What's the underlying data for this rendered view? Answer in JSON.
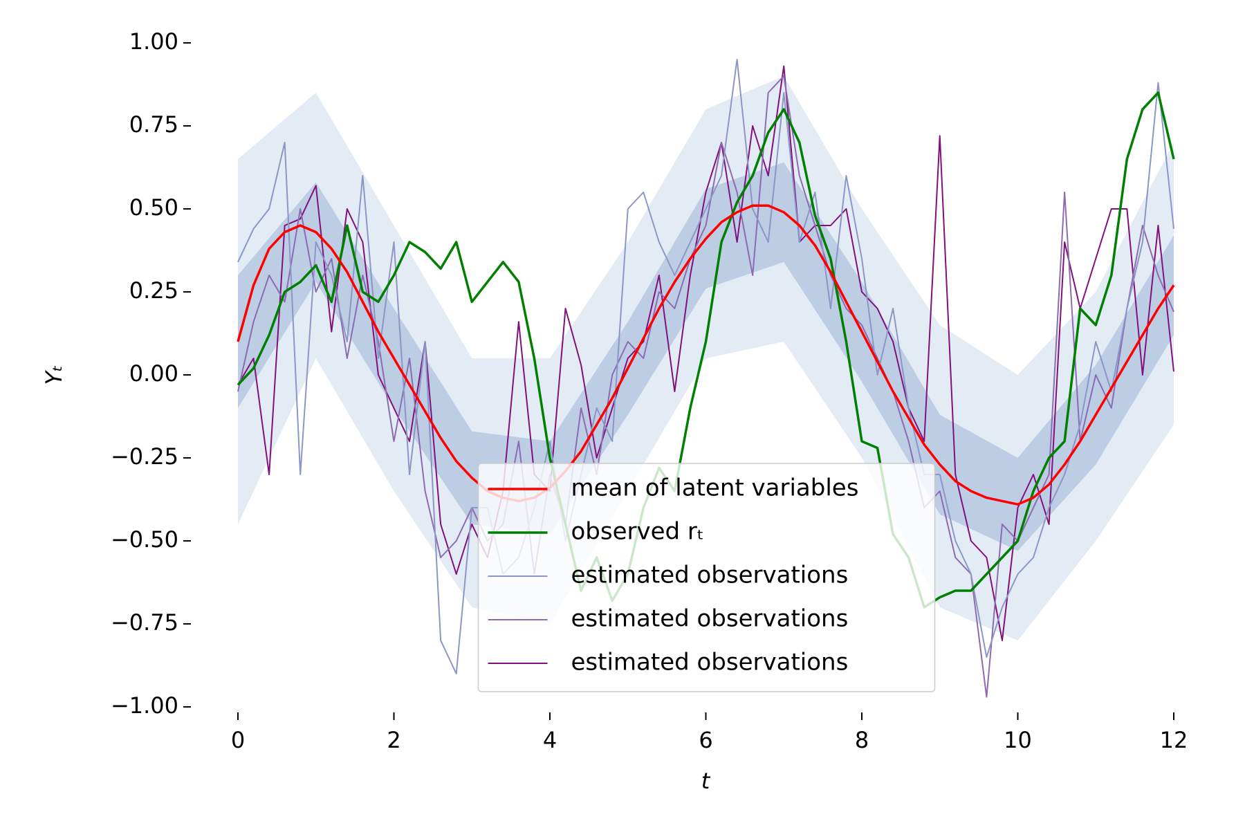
{
  "chart_data": {
    "type": "line",
    "xlabel": "t",
    "ylabel": "Yₜ",
    "xlim": [
      0,
      12
    ],
    "ylim": [
      -1,
      1
    ],
    "xticks": [
      0,
      2,
      4,
      6,
      8,
      10,
      12
    ],
    "yticks": [
      {
        "value": -1,
        "label": "−1.00"
      },
      {
        "value": -0.75,
        "label": "−0.75"
      },
      {
        "value": -0.5,
        "label": "−0.50"
      },
      {
        "value": -0.25,
        "label": "−0.25"
      },
      {
        "value": 0,
        "label": "0.00"
      },
      {
        "value": 0.25,
        "label": "0.25"
      },
      {
        "value": 0.5,
        "label": "0.50"
      },
      {
        "value": 0.75,
        "label": "0.75"
      },
      {
        "value": 1,
        "label": "1.00"
      }
    ],
    "legend": "lower center",
    "x": [
      0,
      0.2,
      0.4,
      0.6,
      0.8,
      1,
      1.2,
      1.4,
      1.6,
      1.8,
      2,
      2.2,
      2.4,
      2.6,
      2.8,
      3,
      3.2,
      3.4,
      3.6,
      3.8,
      4,
      4.2,
      4.4,
      4.6,
      4.8,
      5,
      5.2,
      5.4,
      5.6,
      5.8,
      6,
      6.2,
      6.4,
      6.6,
      6.8,
      7,
      7.2,
      7.4,
      7.6,
      7.8,
      8,
      8.2,
      8.4,
      8.6,
      8.8,
      9,
      9.2,
      9.4,
      9.6,
      9.8,
      10,
      10.2,
      10.4,
      10.6,
      10.8,
      11,
      11.2,
      11.4,
      11.6,
      11.8,
      12
    ],
    "series": [
      {
        "name": "mean of latent variables",
        "color": "#ff0000",
        "width": 3.5,
        "values": [
          0.1,
          0.27,
          0.38,
          0.43,
          0.45,
          0.43,
          0.38,
          0.31,
          0.22,
          0.13,
          0.05,
          -0.03,
          -0.11,
          -0.19,
          -0.26,
          -0.31,
          -0.35,
          -0.37,
          -0.38,
          -0.37,
          -0.34,
          -0.29,
          -0.23,
          -0.15,
          -0.07,
          0.02,
          0.11,
          0.2,
          0.28,
          0.35,
          0.41,
          0.46,
          0.49,
          0.51,
          0.51,
          0.49,
          0.45,
          0.39,
          0.31,
          0.22,
          0.13,
          0.04,
          -0.05,
          -0.13,
          -0.21,
          -0.27,
          -0.32,
          -0.35,
          -0.37,
          -0.38,
          -0.39,
          -0.37,
          -0.33,
          -0.27,
          -0.2,
          -0.12,
          -0.04,
          0.04,
          0.12,
          0.2,
          0.27
        ]
      },
      {
        "name": "observed rₜ",
        "color": "#008000",
        "width": 3.5,
        "values": [
          -0.03,
          0.02,
          0.12,
          0.25,
          0.28,
          0.33,
          0.22,
          0.45,
          0.25,
          0.22,
          0.3,
          0.4,
          0.37,
          0.32,
          0.4,
          0.22,
          0.28,
          0.34,
          0.28,
          0.05,
          -0.25,
          -0.45,
          -0.65,
          -0.55,
          -0.68,
          -0.6,
          -0.4,
          -0.28,
          -0.35,
          -0.1,
          0.1,
          0.4,
          0.52,
          0.6,
          0.73,
          0.8,
          0.7,
          0.48,
          0.35,
          0.1,
          -0.2,
          -0.22,
          -0.48,
          -0.55,
          -0.7,
          -0.67,
          -0.65,
          -0.65,
          -0.6,
          -0.55,
          -0.5,
          -0.35,
          -0.25,
          -0.2,
          0.2,
          0.15,
          0.3,
          0.65,
          0.8,
          0.85,
          0.65
        ]
      },
      {
        "name": "estimated observations",
        "color": "#8c96c6",
        "width": 2,
        "values": [
          0.34,
          0.44,
          0.5,
          0.7,
          -0.3,
          0.4,
          0.3,
          0.1,
          0.6,
          0.05,
          0.4,
          -0.3,
          0.1,
          -0.8,
          -0.9,
          -0.4,
          -0.4,
          -0.6,
          -0.55,
          -0.4,
          -0.2,
          -0.5,
          -0.3,
          -0.1,
          -0.2,
          0.5,
          0.55,
          0.4,
          0.3,
          0.4,
          0.5,
          0.6,
          0.95,
          0.5,
          0.4,
          0.85,
          0.4,
          0.55,
          0.2,
          0.6,
          0.35,
          0.0,
          0.2,
          -0.1,
          -0.3,
          -0.3,
          -0.5,
          -0.6,
          -0.85,
          -0.7,
          -0.6,
          -0.55,
          -0.4,
          -0.3,
          -0.15,
          0.1,
          -0.05,
          0.2,
          0.4,
          0.88,
          0.44
        ]
      },
      {
        "name": "estimated observations",
        "color": "#8c6bb1",
        "width": 2,
        "values": [
          -0.05,
          0.16,
          0.3,
          0.22,
          0.5,
          0.25,
          0.35,
          0.05,
          0.3,
          0.1,
          -0.2,
          0.05,
          -0.35,
          -0.55,
          -0.5,
          -0.4,
          -0.5,
          -0.45,
          -0.2,
          -0.6,
          -0.3,
          -0.45,
          -0.1,
          -0.3,
          0.0,
          0.1,
          0.05,
          0.25,
          0.2,
          0.35,
          0.45,
          0.7,
          0.55,
          0.3,
          0.85,
          0.9,
          0.6,
          0.45,
          0.3,
          0.2,
          0.15,
          0.05,
          -0.05,
          -0.2,
          -0.4,
          -0.35,
          -0.55,
          -0.6,
          -0.97,
          -0.45,
          -0.5,
          -0.4,
          -0.3,
          0.55,
          -0.2,
          0.0,
          -0.1,
          0.2,
          0.45,
          0.3,
          0.19
        ]
      },
      {
        "name": "estimated observations",
        "color": "#810f7c",
        "width": 2,
        "values": [
          -0.03,
          0.05,
          -0.3,
          0.45,
          0.47,
          0.57,
          0.13,
          0.5,
          0.4,
          0.0,
          -0.1,
          -0.2,
          0.1,
          -0.45,
          -0.6,
          -0.45,
          -0.55,
          -0.35,
          0.16,
          -0.3,
          -0.35,
          0.2,
          0.03,
          -0.25,
          -0.1,
          0.05,
          0.1,
          0.3,
          -0.05,
          0.3,
          0.55,
          0.7,
          0.4,
          0.75,
          0.6,
          0.93,
          0.4,
          0.45,
          0.45,
          0.5,
          0.25,
          0.2,
          0.1,
          -0.1,
          -0.2,
          0.72,
          -0.3,
          -0.5,
          -0.55,
          -0.8,
          -0.4,
          -0.3,
          -0.45,
          0.4,
          0.2,
          0.35,
          0.5,
          0.5,
          0.0,
          0.45,
          0.01
        ]
      }
    ],
    "band_x": [
      0,
      1,
      2,
      3,
      4,
      5,
      6,
      7,
      8,
      9,
      10,
      11,
      12
    ],
    "bands": [
      {
        "color": "#e3ebf4",
        "lower": [
          -0.45,
          0.05,
          -0.35,
          -0.7,
          -0.75,
          -0.35,
          0.05,
          0.1,
          -0.25,
          -0.7,
          -0.8,
          -0.5,
          -0.15
        ],
        "upper": [
          0.65,
          0.85,
          0.45,
          0.05,
          0.05,
          0.4,
          0.8,
          0.9,
          0.5,
          0.15,
          0.0,
          0.25,
          0.7
        ]
      },
      {
        "color": "#bccde4",
        "lower": [
          -0.1,
          0.28,
          -0.1,
          -0.45,
          -0.48,
          -0.12,
          0.26,
          0.34,
          -0.02,
          -0.42,
          -0.53,
          -0.27,
          0.12
        ],
        "upper": [
          0.3,
          0.58,
          0.2,
          -0.17,
          -0.2,
          0.16,
          0.56,
          0.64,
          0.28,
          -0.12,
          -0.25,
          0.03,
          0.42
        ]
      }
    ]
  }
}
